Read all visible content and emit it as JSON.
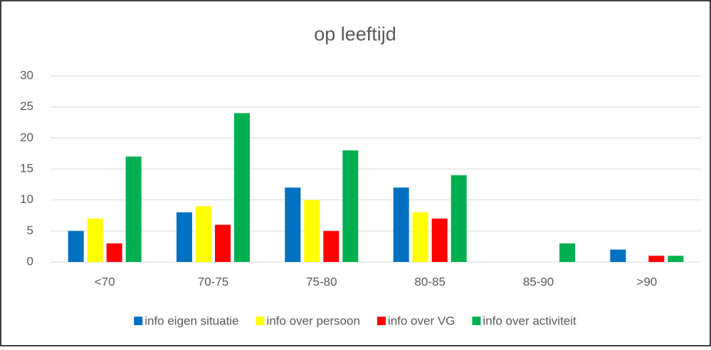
{
  "chart_data": {
    "type": "bar",
    "title": "op leeftijd",
    "categories": [
      "<70",
      "70-75",
      "75-80",
      "80-85",
      "85-90",
      ">90"
    ],
    "series": [
      {
        "name": "info eigen situatie",
        "color": "#0070c0",
        "values": [
          5,
          8,
          12,
          12,
          0,
          2
        ]
      },
      {
        "name": "info over persoon",
        "color": "#ffff00",
        "values": [
          7,
          9,
          10,
          8,
          0,
          0
        ]
      },
      {
        "name": "info over VG",
        "color": "#ff0000",
        "values": [
          3,
          6,
          5,
          7,
          0,
          1
        ]
      },
      {
        "name": "info over activiteit",
        "color": "#00b050",
        "values": [
          17,
          24,
          18,
          14,
          3,
          1
        ]
      }
    ],
    "ylim": [
      0,
      30
    ],
    "yticks": [
      0,
      5,
      10,
      15,
      20,
      25,
      30
    ],
    "grid": true,
    "legend": "bottom"
  }
}
